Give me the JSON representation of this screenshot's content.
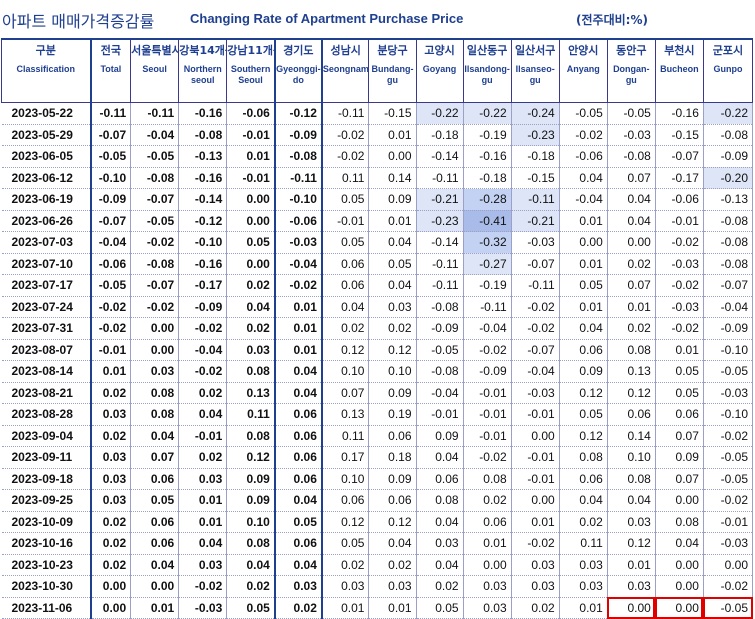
{
  "title": {
    "korean": "아파트 매매가격증감률",
    "english": "Changing Rate of Apartment Purchase Price",
    "unit": "(전주대비:%)"
  },
  "columns": [
    {
      "key": "date",
      "ko": "구분",
      "en": "Classification"
    },
    {
      "key": "total",
      "ko": "전국",
      "en": "Total"
    },
    {
      "key": "seoul",
      "ko": "서울특별시",
      "en": "Seoul"
    },
    {
      "key": "north",
      "ko": "강북14개구",
      "en": "Northern seoul"
    },
    {
      "key": "south",
      "ko": "강남11개구",
      "en": "Southern Seoul"
    },
    {
      "key": "gyeonggi",
      "ko": "경기도",
      "en": "Gyeonggi-do"
    },
    {
      "key": "seongnam",
      "ko": "성남시",
      "en": "Seongnam"
    },
    {
      "key": "bundang",
      "ko": "분당구",
      "en": "Bundang-gu"
    },
    {
      "key": "goyang",
      "ko": "고양시",
      "en": "Goyang"
    },
    {
      "key": "ilsandong",
      "ko": "일산동구",
      "en": "Ilsandong-gu"
    },
    {
      "key": "ilsanseo",
      "ko": "일산서구",
      "en": "Ilsanseo-gu"
    },
    {
      "key": "anyang",
      "ko": "안양시",
      "en": "Anyang"
    },
    {
      "key": "dongan",
      "ko": "동안구",
      "en": "Dongan-gu"
    },
    {
      "key": "bucheon",
      "ko": "부천시",
      "en": "Bucheon"
    },
    {
      "key": "gunpo",
      "ko": "군포시",
      "en": "Gunpo"
    }
  ],
  "rows": [
    [
      "2023-05-22",
      "-0.11",
      "-0.11",
      "-0.16",
      "-0.06",
      "-0.12",
      "-0.11",
      "-0.15",
      "-0.22",
      "-0.22",
      "-0.24",
      "-0.05",
      "-0.05",
      "-0.16",
      "-0.22"
    ],
    [
      "2023-05-29",
      "-0.07",
      "-0.04",
      "-0.08",
      "-0.01",
      "-0.09",
      "-0.02",
      "0.01",
      "-0.18",
      "-0.19",
      "-0.23",
      "-0.02",
      "-0.03",
      "-0.15",
      "-0.08"
    ],
    [
      "2023-06-05",
      "-0.05",
      "-0.05",
      "-0.13",
      "0.01",
      "-0.08",
      "-0.02",
      "0.00",
      "-0.14",
      "-0.16",
      "-0.18",
      "-0.06",
      "-0.08",
      "-0.07",
      "-0.09"
    ],
    [
      "2023-06-12",
      "-0.10",
      "-0.08",
      "-0.16",
      "-0.01",
      "-0.11",
      "0.11",
      "0.14",
      "-0.11",
      "-0.18",
      "-0.15",
      "0.04",
      "0.07",
      "-0.17",
      "-0.20"
    ],
    [
      "2023-06-19",
      "-0.09",
      "-0.07",
      "-0.14",
      "0.00",
      "-0.10",
      "0.05",
      "0.09",
      "-0.21",
      "-0.28",
      "-0.11",
      "-0.04",
      "0.04",
      "-0.06",
      "-0.13"
    ],
    [
      "2023-06-26",
      "-0.07",
      "-0.05",
      "-0.12",
      "0.00",
      "-0.06",
      "-0.01",
      "0.01",
      "-0.23",
      "-0.41",
      "-0.21",
      "0.01",
      "0.04",
      "-0.01",
      "-0.08"
    ],
    [
      "2023-07-03",
      "-0.04",
      "-0.02",
      "-0.10",
      "0.05",
      "-0.03",
      "0.05",
      "0.04",
      "-0.14",
      "-0.32",
      "-0.03",
      "0.00",
      "0.00",
      "-0.02",
      "-0.08"
    ],
    [
      "2023-07-10",
      "-0.06",
      "-0.08",
      "-0.16",
      "0.00",
      "-0.04",
      "0.06",
      "0.05",
      "-0.11",
      "-0.27",
      "-0.07",
      "0.01",
      "0.02",
      "-0.03",
      "-0.08"
    ],
    [
      "2023-07-17",
      "-0.05",
      "-0.07",
      "-0.17",
      "0.02",
      "-0.02",
      "0.06",
      "0.04",
      "-0.11",
      "-0.19",
      "-0.11",
      "0.05",
      "0.07",
      "-0.02",
      "-0.07"
    ],
    [
      "2023-07-24",
      "-0.02",
      "-0.02",
      "-0.09",
      "0.04",
      "0.01",
      "0.04",
      "0.03",
      "-0.08",
      "-0.11",
      "-0.02",
      "0.01",
      "0.01",
      "-0.03",
      "-0.04"
    ],
    [
      "2023-07-31",
      "-0.02",
      "0.00",
      "-0.02",
      "0.02",
      "0.01",
      "0.02",
      "0.02",
      "-0.09",
      "-0.04",
      "-0.02",
      "0.04",
      "0.02",
      "-0.02",
      "-0.09"
    ],
    [
      "2023-08-07",
      "-0.01",
      "0.00",
      "-0.04",
      "0.03",
      "0.01",
      "0.12",
      "0.12",
      "-0.05",
      "-0.02",
      "-0.07",
      "0.06",
      "0.08",
      "0.01",
      "-0.10"
    ],
    [
      "2023-08-14",
      "0.01",
      "0.03",
      "-0.02",
      "0.08",
      "0.04",
      "0.10",
      "0.10",
      "-0.08",
      "-0.09",
      "-0.04",
      "0.09",
      "0.13",
      "0.05",
      "-0.05"
    ],
    [
      "2023-08-21",
      "0.02",
      "0.08",
      "0.02",
      "0.13",
      "0.04",
      "0.07",
      "0.09",
      "-0.04",
      "-0.01",
      "-0.03",
      "0.12",
      "0.12",
      "0.05",
      "-0.03"
    ],
    [
      "2023-08-28",
      "0.03",
      "0.08",
      "0.04",
      "0.11",
      "0.06",
      "0.13",
      "0.19",
      "-0.01",
      "-0.01",
      "-0.01",
      "0.05",
      "0.06",
      "0.06",
      "-0.10"
    ],
    [
      "2023-09-04",
      "0.02",
      "0.04",
      "-0.01",
      "0.08",
      "0.06",
      "0.11",
      "0.06",
      "0.09",
      "-0.01",
      "0.00",
      "0.12",
      "0.14",
      "0.07",
      "-0.02"
    ],
    [
      "2023-09-11",
      "0.03",
      "0.07",
      "0.02",
      "0.12",
      "0.06",
      "0.17",
      "0.18",
      "0.04",
      "-0.02",
      "-0.01",
      "0.08",
      "0.10",
      "0.09",
      "-0.05"
    ],
    [
      "2023-09-18",
      "0.03",
      "0.06",
      "0.03",
      "0.09",
      "0.06",
      "0.10",
      "0.09",
      "0.06",
      "0.08",
      "-0.01",
      "0.06",
      "0.08",
      "0.07",
      "-0.05"
    ],
    [
      "2023-09-25",
      "0.03",
      "0.05",
      "0.01",
      "0.09",
      "0.04",
      "0.06",
      "0.06",
      "0.08",
      "0.02",
      "0.00",
      "0.04",
      "0.04",
      "0.00",
      "-0.02"
    ],
    [
      "2023-10-09",
      "0.02",
      "0.06",
      "0.01",
      "0.10",
      "0.05",
      "0.12",
      "0.12",
      "0.04",
      "0.06",
      "0.01",
      "0.02",
      "0.03",
      "0.08",
      "-0.01"
    ],
    [
      "2023-10-16",
      "0.02",
      "0.06",
      "0.04",
      "0.08",
      "0.06",
      "0.05",
      "0.04",
      "0.03",
      "0.01",
      "-0.02",
      "0.11",
      "0.12",
      "0.04",
      "-0.03"
    ],
    [
      "2023-10-23",
      "0.02",
      "0.04",
      "0.03",
      "0.04",
      "0.04",
      "0.02",
      "0.02",
      "0.04",
      "0.00",
      "0.03",
      "0.03",
      "0.01",
      "0.00",
      "0.00"
    ],
    [
      "2023-10-30",
      "0.00",
      "0.00",
      "-0.02",
      "0.02",
      "0.03",
      "0.03",
      "0.03",
      "0.02",
      "0.03",
      "0.03",
      "0.03",
      "0.03",
      "0.00",
      "-0.02"
    ],
    [
      "2023-11-06",
      "0.00",
      "0.01",
      "-0.03",
      "0.05",
      "0.02",
      "0.01",
      "0.01",
      "0.05",
      "0.03",
      "0.02",
      "0.01",
      "0.00",
      "0.00",
      "-0.05"
    ]
  ],
  "colors": {
    "header_text": "#1f3f8f",
    "highlight_light": "#dde5f7",
    "highlight_mid": "#c3d1f2",
    "highlight_dark": "#a9bce9",
    "selection_border": "#e00000"
  },
  "highlights": {
    "light": [
      [
        0,
        8
      ],
      [
        0,
        9
      ],
      [
        0,
        10
      ],
      [
        0,
        14
      ],
      [
        1,
        10
      ],
      [
        3,
        14
      ],
      [
        4,
        8
      ],
      [
        4,
        10
      ],
      [
        5,
        8
      ],
      [
        5,
        10
      ],
      [
        6,
        9
      ],
      [
        7,
        9
      ]
    ],
    "mid": [
      [
        4,
        9
      ],
      [
        6,
        9
      ]
    ],
    "dark": [
      [
        5,
        9
      ]
    ]
  },
  "selected_cells": [
    [
      23,
      12
    ],
    [
      23,
      13
    ],
    [
      23,
      14
    ]
  ]
}
